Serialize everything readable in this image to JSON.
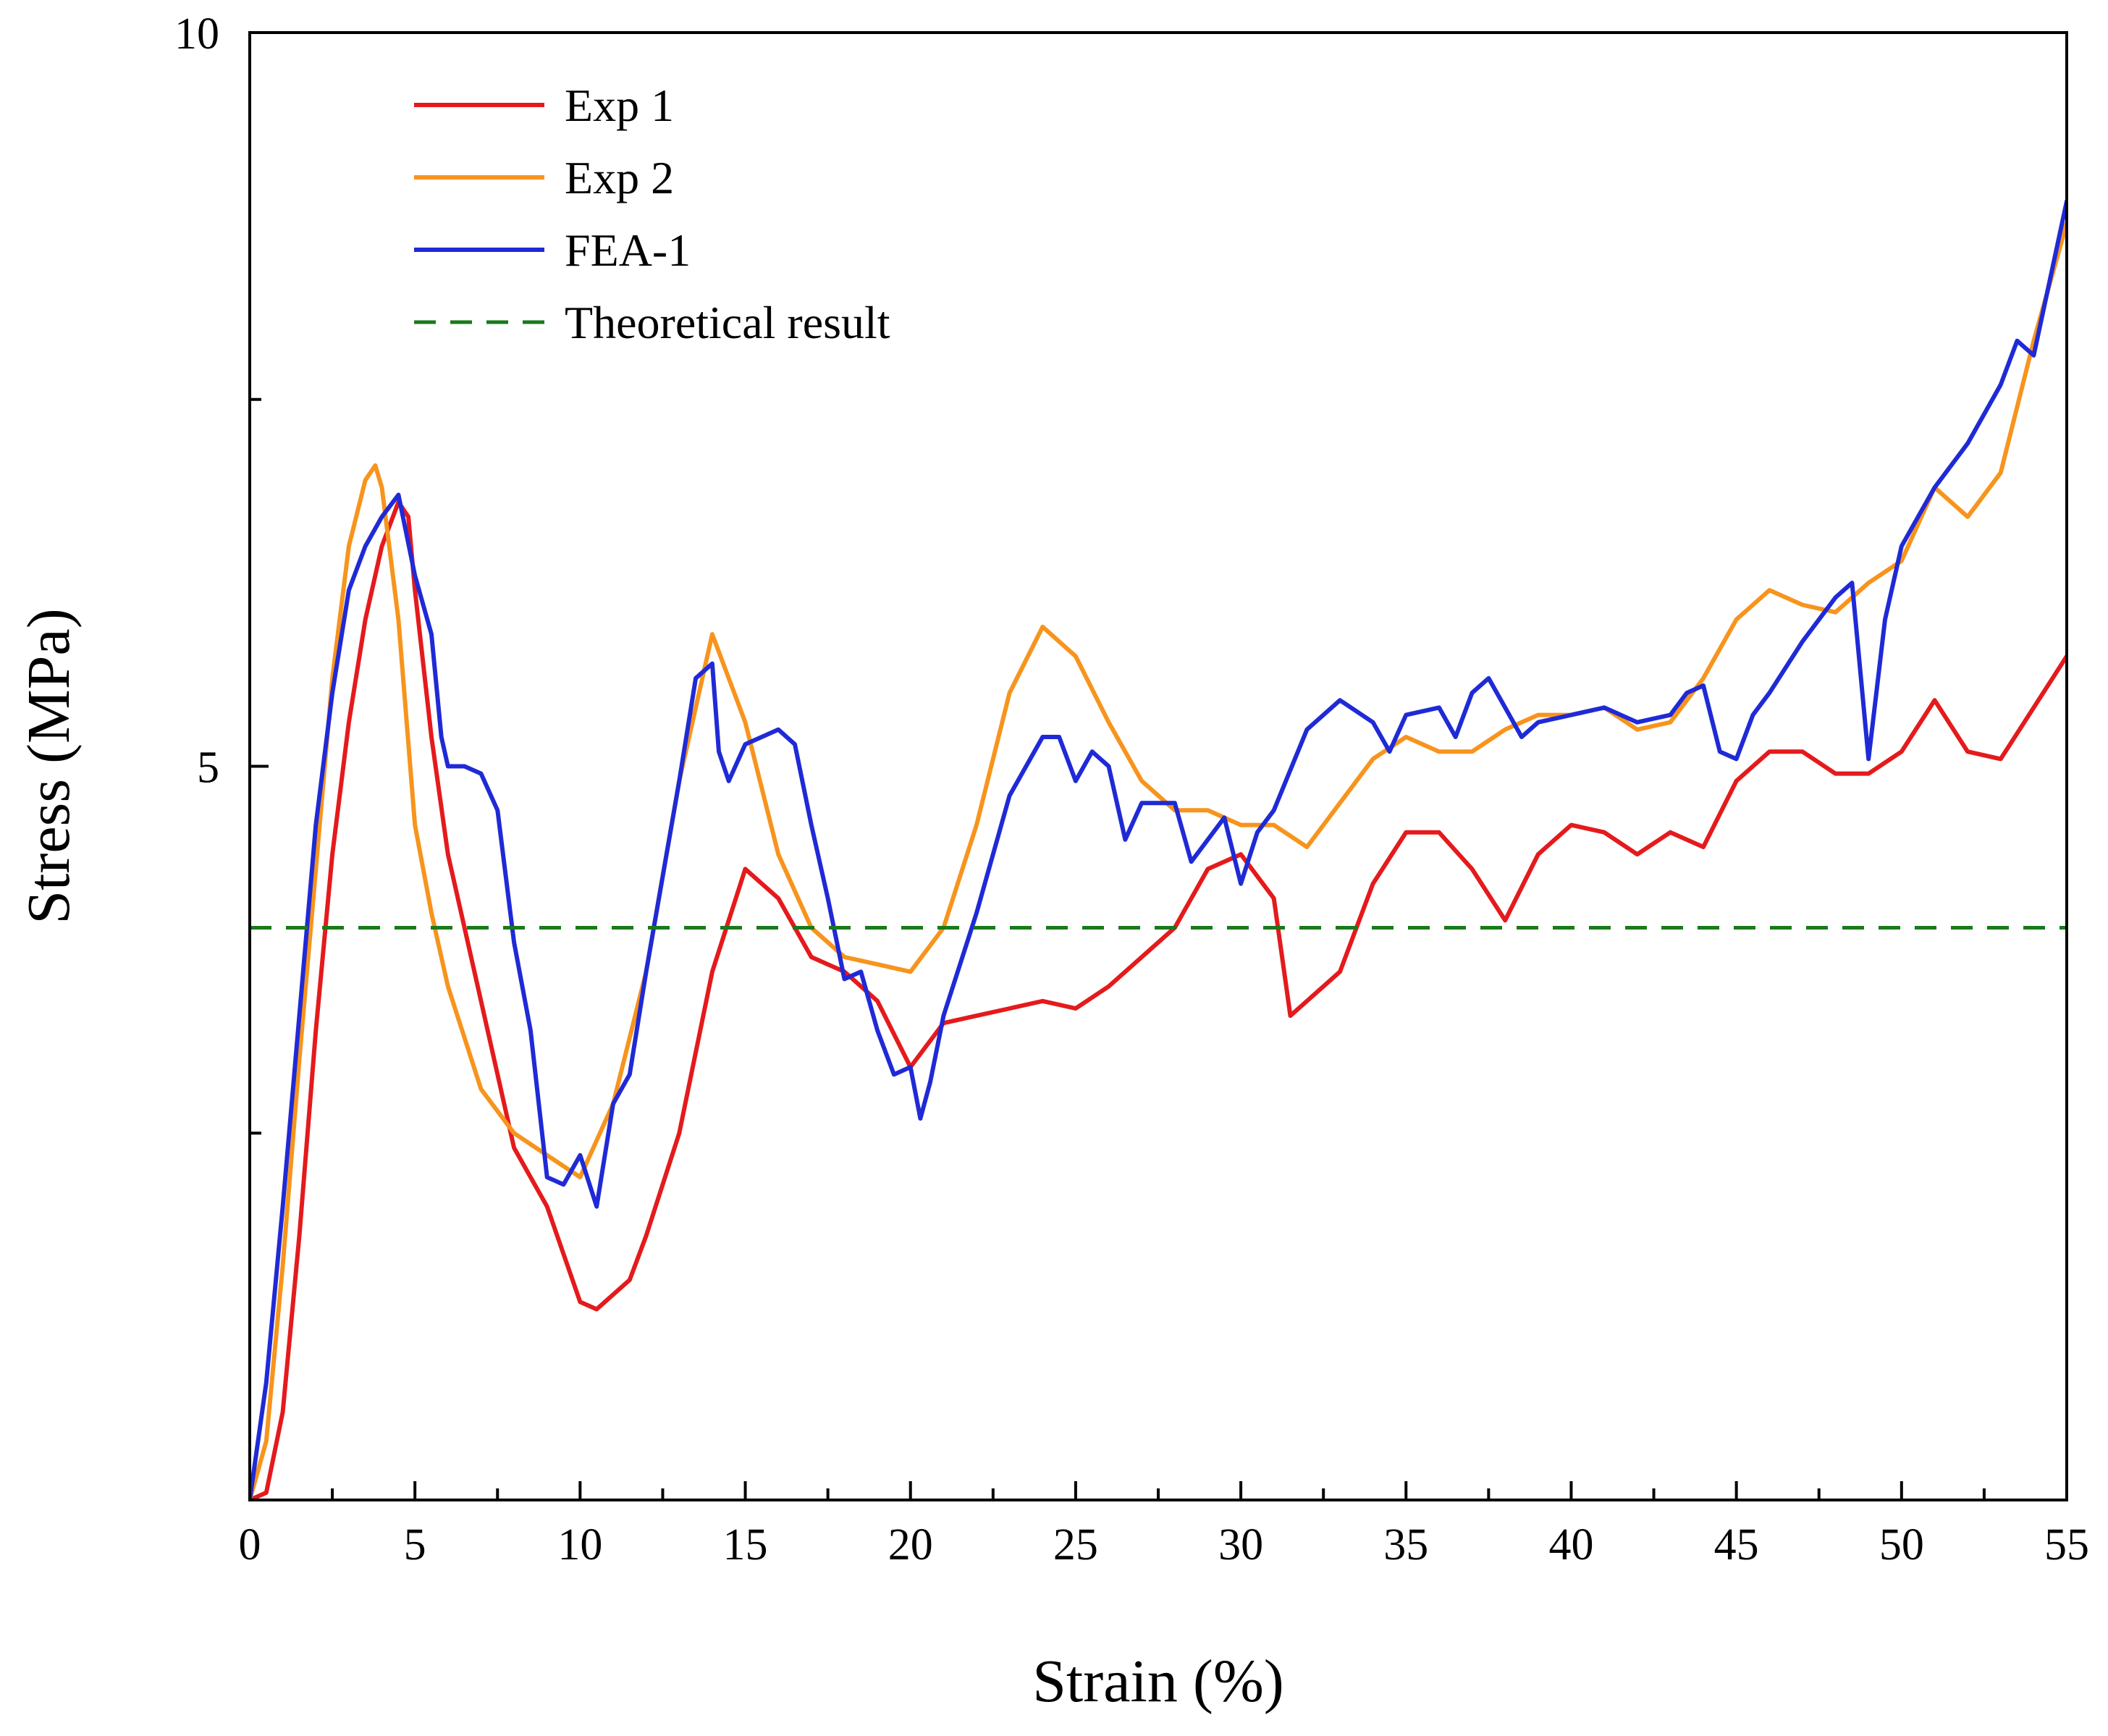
{
  "chart_data": {
    "type": "line",
    "title": "",
    "xlabel": "Strain (%)",
    "ylabel": "Stress (MPa)",
    "xlim": [
      0,
      55
    ],
    "ylim": [
      0,
      10
    ],
    "xticks": [
      0,
      5,
      10,
      15,
      20,
      25,
      30,
      35,
      40,
      45,
      50,
      55
    ],
    "xtick_labels": [
      "0",
      "5",
      "10",
      "15",
      "20",
      "25",
      "30",
      "35",
      "40",
      "45",
      "50",
      "55"
    ],
    "yticks": [
      5,
      10
    ],
    "ytick_labels": [
      "5",
      "10"
    ],
    "x_minor_step": 2.5,
    "y_minor_step": 2.5,
    "legend_position": "top-left",
    "series": [
      {
        "name": "Exp 1",
        "color": "#e41a1c",
        "dash": "solid",
        "points": [
          [
            0,
            0
          ],
          [
            0.5,
            0.05
          ],
          [
            1,
            0.6
          ],
          [
            1.5,
            1.8
          ],
          [
            2,
            3.2
          ],
          [
            2.5,
            4.4
          ],
          [
            3,
            5.3
          ],
          [
            3.5,
            6.0
          ],
          [
            4,
            6.5
          ],
          [
            4.5,
            6.8
          ],
          [
            4.8,
            6.7
          ],
          [
            5,
            6.2
          ],
          [
            5.5,
            5.2
          ],
          [
            6,
            4.4
          ],
          [
            7,
            3.4
          ],
          [
            8,
            2.4
          ],
          [
            9,
            2.0
          ],
          [
            10,
            1.35
          ],
          [
            10.5,
            1.3
          ],
          [
            11,
            1.4
          ],
          [
            11.5,
            1.5
          ],
          [
            12,
            1.8
          ],
          [
            13,
            2.5
          ],
          [
            14,
            3.6
          ],
          [
            15,
            4.3
          ],
          [
            16,
            4.1
          ],
          [
            17,
            3.7
          ],
          [
            18,
            3.6
          ],
          [
            19,
            3.4
          ],
          [
            20,
            2.95
          ],
          [
            21,
            3.25
          ],
          [
            22,
            3.3
          ],
          [
            23,
            3.35
          ],
          [
            24,
            3.4
          ],
          [
            25,
            3.35
          ],
          [
            26,
            3.5
          ],
          [
            27,
            3.7
          ],
          [
            28,
            3.9
          ],
          [
            29,
            4.3
          ],
          [
            30,
            4.4
          ],
          [
            31,
            4.1
          ],
          [
            31.5,
            3.3
          ],
          [
            32,
            3.4
          ],
          [
            33,
            3.6
          ],
          [
            34,
            4.2
          ],
          [
            35,
            4.55
          ],
          [
            36,
            4.55
          ],
          [
            37,
            4.3
          ],
          [
            38,
            3.95
          ],
          [
            39,
            4.4
          ],
          [
            40,
            4.6
          ],
          [
            41,
            4.55
          ],
          [
            42,
            4.4
          ],
          [
            43,
            4.55
          ],
          [
            44,
            4.45
          ],
          [
            45,
            4.9
          ],
          [
            46,
            5.1
          ],
          [
            47,
            5.1
          ],
          [
            48,
            4.95
          ],
          [
            49,
            4.95
          ],
          [
            50,
            5.1
          ],
          [
            51,
            5.45
          ],
          [
            52,
            5.1
          ],
          [
            53,
            5.05
          ],
          [
            54,
            5.4
          ],
          [
            55,
            5.75
          ]
        ]
      },
      {
        "name": "Exp 2",
        "color": "#f7941d",
        "dash": "solid",
        "points": [
          [
            0,
            0
          ],
          [
            0.5,
            0.4
          ],
          [
            1,
            1.6
          ],
          [
            1.5,
            3.0
          ],
          [
            2,
            4.3
          ],
          [
            2.5,
            5.6
          ],
          [
            3,
            6.5
          ],
          [
            3.5,
            6.95
          ],
          [
            3.8,
            7.05
          ],
          [
            4,
            6.9
          ],
          [
            4.5,
            6.0
          ],
          [
            5,
            4.6
          ],
          [
            5.5,
            4.0
          ],
          [
            6,
            3.5
          ],
          [
            7,
            2.8
          ],
          [
            8,
            2.5
          ],
          [
            9,
            2.35
          ],
          [
            10,
            2.2
          ],
          [
            11,
            2.7
          ],
          [
            12,
            3.6
          ],
          [
            13,
            4.9
          ],
          [
            14,
            5.9
          ],
          [
            15,
            5.3
          ],
          [
            16,
            4.4
          ],
          [
            17,
            3.9
          ],
          [
            18,
            3.7
          ],
          [
            19,
            3.65
          ],
          [
            20,
            3.6
          ],
          [
            21,
            3.9
          ],
          [
            22,
            4.6
          ],
          [
            23,
            5.5
          ],
          [
            24,
            5.95
          ],
          [
            25,
            5.75
          ],
          [
            26,
            5.3
          ],
          [
            27,
            4.9
          ],
          [
            28,
            4.7
          ],
          [
            29,
            4.7
          ],
          [
            30,
            4.6
          ],
          [
            31,
            4.6
          ],
          [
            32,
            4.45
          ],
          [
            33,
            4.75
          ],
          [
            34,
            5.05
          ],
          [
            35,
            5.2
          ],
          [
            36,
            5.1
          ],
          [
            37,
            5.1
          ],
          [
            38,
            5.25
          ],
          [
            39,
            5.35
          ],
          [
            40,
            5.35
          ],
          [
            41,
            5.4
          ],
          [
            42,
            5.25
          ],
          [
            43,
            5.3
          ],
          [
            44,
            5.6
          ],
          [
            45,
            6.0
          ],
          [
            46,
            6.2
          ],
          [
            47,
            6.1
          ],
          [
            48,
            6.05
          ],
          [
            49,
            6.25
          ],
          [
            50,
            6.4
          ],
          [
            51,
            6.9
          ],
          [
            52,
            6.7
          ],
          [
            53,
            7.0
          ],
          [
            54,
            7.9
          ],
          [
            55,
            8.7
          ]
        ]
      },
      {
        "name": "FEA-1",
        "color": "#1f2ad6",
        "dash": "solid",
        "points": [
          [
            0,
            0
          ],
          [
            0.5,
            0.8
          ],
          [
            1,
            2.0
          ],
          [
            1.5,
            3.3
          ],
          [
            2,
            4.6
          ],
          [
            2.5,
            5.5
          ],
          [
            3,
            6.2
          ],
          [
            3.5,
            6.5
          ],
          [
            4,
            6.7
          ],
          [
            4.5,
            6.85
          ],
          [
            5,
            6.3
          ],
          [
            5.5,
            5.9
          ],
          [
            5.8,
            5.2
          ],
          [
            6,
            5.0
          ],
          [
            6.5,
            5.0
          ],
          [
            7,
            4.95
          ],
          [
            7.5,
            4.7
          ],
          [
            8,
            3.8
          ],
          [
            8.5,
            3.2
          ],
          [
            9,
            2.2
          ],
          [
            9.5,
            2.15
          ],
          [
            10,
            2.35
          ],
          [
            10.5,
            2.0
          ],
          [
            11,
            2.7
          ],
          [
            11.5,
            2.9
          ],
          [
            12,
            3.6
          ],
          [
            13,
            4.9
          ],
          [
            13.5,
            5.6
          ],
          [
            14,
            5.7
          ],
          [
            14.2,
            5.1
          ],
          [
            14.5,
            4.9
          ],
          [
            15,
            5.15
          ],
          [
            16,
            5.25
          ],
          [
            16.5,
            5.15
          ],
          [
            17,
            4.6
          ],
          [
            17.5,
            4.1
          ],
          [
            18,
            3.55
          ],
          [
            18.5,
            3.6
          ],
          [
            19,
            3.2
          ],
          [
            19.5,
            2.9
          ],
          [
            20,
            2.95
          ],
          [
            20.3,
            2.6
          ],
          [
            20.6,
            2.85
          ],
          [
            21,
            3.3
          ],
          [
            22,
            4.0
          ],
          [
            23,
            4.8
          ],
          [
            24,
            5.2
          ],
          [
            24.5,
            5.2
          ],
          [
            25,
            4.9
          ],
          [
            25.5,
            5.1
          ],
          [
            26,
            5.0
          ],
          [
            26.5,
            4.5
          ],
          [
            27,
            4.75
          ],
          [
            28,
            4.75
          ],
          [
            28.5,
            4.35
          ],
          [
            29,
            4.5
          ],
          [
            29.5,
            4.65
          ],
          [
            30,
            4.2
          ],
          [
            30.5,
            4.55
          ],
          [
            31,
            4.7
          ],
          [
            32,
            5.25
          ],
          [
            33,
            5.45
          ],
          [
            34,
            5.3
          ],
          [
            34.5,
            5.1
          ],
          [
            35,
            5.35
          ],
          [
            36,
            5.4
          ],
          [
            36.5,
            5.2
          ],
          [
            37,
            5.5
          ],
          [
            37.5,
            5.6
          ],
          [
            38,
            5.4
          ],
          [
            38.5,
            5.2
          ],
          [
            39,
            5.3
          ],
          [
            40,
            5.35
          ],
          [
            41,
            5.4
          ],
          [
            42,
            5.3
          ],
          [
            43,
            5.35
          ],
          [
            43.5,
            5.5
          ],
          [
            44,
            5.55
          ],
          [
            44.5,
            5.1
          ],
          [
            45,
            5.05
          ],
          [
            45.5,
            5.35
          ],
          [
            46,
            5.5
          ],
          [
            47,
            5.85
          ],
          [
            48,
            6.15
          ],
          [
            48.5,
            6.25
          ],
          [
            49,
            5.05
          ],
          [
            49.5,
            6.0
          ],
          [
            50,
            6.5
          ],
          [
            51,
            6.9
          ],
          [
            52,
            7.2
          ],
          [
            53,
            7.6
          ],
          [
            53.5,
            7.9
          ],
          [
            54,
            7.8
          ],
          [
            55,
            8.85
          ]
        ]
      },
      {
        "name": "Theoretical result",
        "color": "#1a7a1a",
        "dash": "dashed",
        "points": [
          [
            0,
            3.9
          ],
          [
            55,
            3.9
          ]
        ]
      }
    ]
  }
}
